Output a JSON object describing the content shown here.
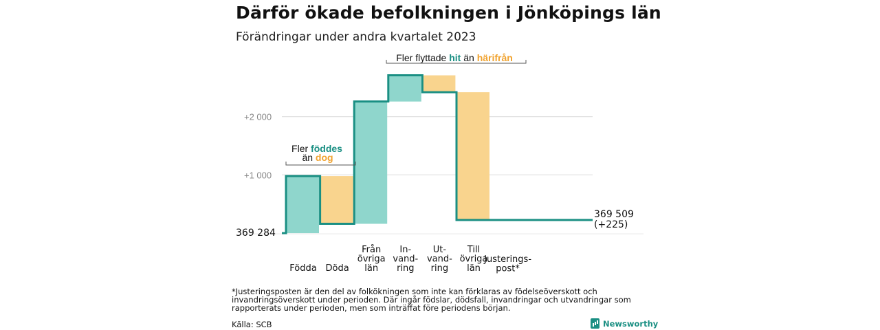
{
  "title": "Därför ökade befolkningen i Jönköpings län",
  "subtitle": "Förändringar under andra kvartalet 2023",
  "chart_data": {
    "type": "waterfall",
    "start_value": 369284,
    "start_label": "369   284",
    "end_label_line1": "369 509",
    "end_label_line2": "(+225)",
    "ylim": [
      -70,
      3000
    ],
    "yticks": [
      {
        "value": 1000,
        "label": "+1   000"
      },
      {
        "value": 2000,
        "label": "+2   000"
      }
    ],
    "colors": {
      "gain": "#8fd6cc",
      "loss": "#f9d48e",
      "line": "#1a8f83",
      "grid": "#d9d9d9",
      "hit": "#1a8f83",
      "harifran": "#f0a22e"
    },
    "steps": [
      {
        "label": [
          "Födda"
        ],
        "change": 980,
        "kind": "gain"
      },
      {
        "label": [
          "Döda"
        ],
        "change": -820,
        "kind": "loss"
      },
      {
        "label": [
          "Från",
          "övriga",
          "län"
        ],
        "change": 2100,
        "kind": "gain"
      },
      {
        "label": [
          "In-",
          "vand-",
          "ring"
        ],
        "change": 450,
        "kind": "gain"
      },
      {
        "label": [
          "Ut-",
          "vand-",
          "ring"
        ],
        "change": -290,
        "kind": "loss"
      },
      {
        "label": [
          "Till",
          "övriga",
          "län"
        ],
        "change": -2195,
        "kind": "loss"
      },
      {
        "label": [
          "Justerings-",
          "post*"
        ],
        "change": 0,
        "kind": "line"
      }
    ],
    "annotations": {
      "births": {
        "part1": "Fler ",
        "word1": "föddes",
        "part2": "än ",
        "word2": "dog"
      },
      "moves": {
        "part1": "Fler flyttade ",
        "word1": "hit",
        "part2": " än ",
        "word2": "härifrån"
      }
    }
  },
  "footnote": "*Justeringsposten är den del av folkökningen som inte kan förklaras av födelseöverskott och invandringsöverskott under perioden. Där ingår födslar, dödsfall, invandringar och utvandringar som rapporterats under perioden, men som inträffat före periodens början.",
  "source": "Källa: SCB",
  "brand": "Newsworthy"
}
